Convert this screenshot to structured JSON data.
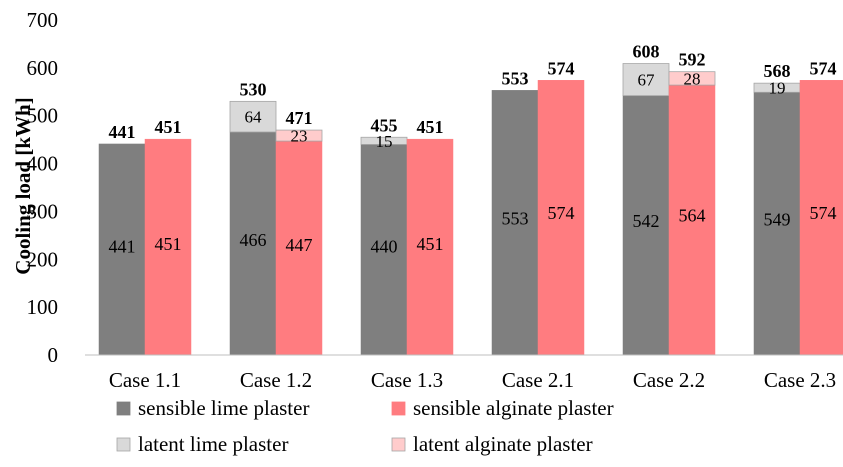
{
  "chart_data": {
    "type": "bar",
    "stacked": true,
    "ylabel": "Cooling load [kWh]",
    "xlabel": "",
    "title": "",
    "ylim": [
      0,
      700
    ],
    "yticks": [
      "0",
      "100",
      "200",
      "300",
      "400",
      "500",
      "600",
      "700"
    ],
    "grid": false,
    "legend_position": "bottom",
    "categories": [
      "Case 1.1",
      "Case 1.2",
      "Case 1.3",
      "Case 2.1",
      "Case 2.2",
      "Case 2.3"
    ],
    "series": [
      {
        "name": "sensible lime plaster",
        "group": "lime",
        "layer": "sensible",
        "color": "#7f7f7f",
        "values": [
          441,
          466,
          440,
          553,
          542,
          549
        ]
      },
      {
        "name": "latent lime plaster",
        "group": "lime",
        "layer": "latent",
        "color": "#d9d9d9",
        "values": [
          0,
          64,
          15,
          0,
          67,
          19
        ]
      },
      {
        "name": "sensible alginate plaster",
        "group": "alginate",
        "layer": "sensible",
        "color": "#ff7c80",
        "values": [
          451,
          447,
          451,
          574,
          564,
          574
        ]
      },
      {
        "name": "latent alginate plaster",
        "group": "alginate",
        "layer": "latent",
        "color": "#ffcccc",
        "values": [
          0,
          23,
          0,
          0,
          28,
          0
        ]
      }
    ],
    "sensible_labels": {
      "lime": [
        "441",
        "466",
        "440",
        "553",
        "542",
        "549"
      ],
      "alginate": [
        "451",
        "447",
        "451",
        "574",
        "564",
        "574"
      ]
    },
    "latent_labels": {
      "lime": [
        "",
        "64",
        "15",
        "",
        "67",
        "19"
      ],
      "alginate": [
        "",
        "23",
        "",
        "",
        "28",
        ""
      ]
    },
    "totals": {
      "lime": [
        "441",
        "530",
        "455",
        "553",
        "608",
        "568"
      ],
      "alginate": [
        "451",
        "471",
        "451",
        "574",
        "592",
        "574"
      ]
    }
  }
}
